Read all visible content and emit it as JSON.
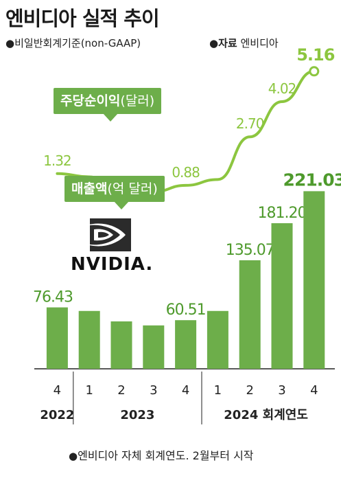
{
  "title": "엔비디아 실적 추이",
  "notes": {
    "basis": "비일반회계기준(non-GAAP)",
    "source_label": "자료",
    "source_value": "엔비디아",
    "footnote": "엔비디아 자체 회계연도. 2월부터 시작"
  },
  "callouts": {
    "eps_main": "주당순이익",
    "eps_unit": "(달러)",
    "revenue_main": "매출액",
    "revenue_unit": "(억 달러)"
  },
  "logo_text": "NVIDIA.",
  "colors": {
    "bar": "#6dae4a",
    "line": "#8cc63f",
    "callout": "#6dae4a",
    "eps_label": "#8cc63f",
    "rev_label": "#4e9a2c"
  },
  "chart_data": {
    "type": "bar",
    "categories": [
      "4",
      "1",
      "2",
      "3",
      "4",
      "1",
      "2",
      "3",
      "4"
    ],
    "year_groups": [
      {
        "label": "2022",
        "span": [
          0,
          0
        ]
      },
      {
        "label": "2023",
        "span": [
          1,
          4
        ]
      },
      {
        "label": "2024 회계연도",
        "span": [
          5,
          8
        ]
      }
    ],
    "series": [
      {
        "type": "bar",
        "values": [
          76.43,
          72.0,
          59.0,
          54.0,
          60.51,
          72.0,
          135.07,
          181.2,
          221.03
        ],
        "labels": [
          "76.43",
          "",
          "",
          "",
          "60.51",
          "",
          "135.07",
          "181.20",
          "221.03"
        ]
      },
      {
        "type": "line",
        "values": [
          1.32,
          1.2,
          0.6,
          0.64,
          0.88,
          1.1,
          2.7,
          4.02,
          5.16
        ],
        "labels": [
          "1.32",
          "",
          "",
          "",
          "0.88",
          "",
          "2.70",
          "4.02",
          "5.16"
        ]
      }
    ]
  }
}
